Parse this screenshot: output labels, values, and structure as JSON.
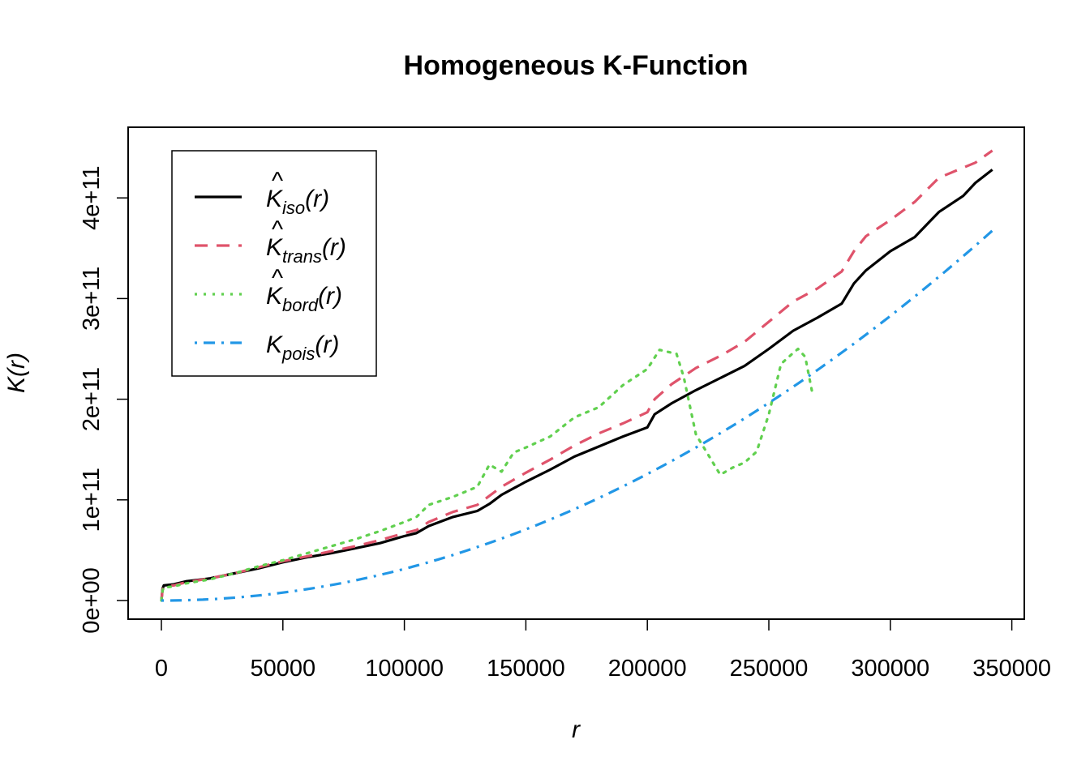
{
  "chart_data": {
    "type": "line",
    "title": "Homogeneous K-Function",
    "xlabel": "r",
    "ylabel": "K(r)",
    "xlim": [
      0,
      350000
    ],
    "ylim": [
      0,
      450000000000.0
    ],
    "x_ticks": [
      0,
      50000,
      100000,
      150000,
      200000,
      250000,
      300000,
      350000
    ],
    "x_tick_labels": [
      "0",
      "50000",
      "100000",
      "150000",
      "200000",
      "250000",
      "300000",
      "350000"
    ],
    "y_ticks": [
      0,
      100000000000.0,
      200000000000.0,
      300000000000.0,
      400000000000.0
    ],
    "y_tick_labels": [
      "0e+00",
      "1e+11",
      "2e+11",
      "3e+11",
      "4e+11"
    ],
    "grid": false,
    "legend_position": "top-left",
    "series": [
      {
        "name": "iso",
        "legend_base": "K",
        "legend_sub": "iso",
        "legend_arg": "(r)",
        "hat": true,
        "color": "#000000",
        "dash": "solid",
        "x": [
          0,
          500,
          1000,
          5000,
          10000,
          20000,
          30000,
          40000,
          50000,
          60000,
          70000,
          80000,
          90000,
          100000,
          105000,
          110000,
          120000,
          130000,
          135000,
          140000,
          150000,
          160000,
          170000,
          180000,
          190000,
          200000,
          203000,
          210000,
          220000,
          230000,
          240000,
          250000,
          260000,
          270000,
          280000,
          285000,
          290000,
          300000,
          310000,
          320000,
          330000,
          335000,
          342000
        ],
        "y": [
          0,
          12000000000.0,
          15000000000.0,
          16000000000.0,
          19000000000.0,
          22000000000.0,
          27000000000.0,
          32000000000.0,
          38000000000.0,
          43000000000.0,
          47000000000.0,
          52000000000.0,
          57000000000.0,
          64000000000.0,
          67000000000.0,
          74000000000.0,
          83000000000.0,
          89000000000.0,
          96000000000.0,
          105000000000.0,
          118000000000.0,
          130000000000.0,
          143000000000.0,
          153000000000.0,
          163000000000.0,
          172000000000.0,
          185000000000.0,
          196000000000.0,
          209000000000.0,
          221000000000.0,
          233000000000.0,
          250000000000.0,
          268000000000.0,
          281000000000.0,
          295000000000.0,
          315000000000.0,
          328000000000.0,
          347000000000.0,
          361000000000.0,
          386000000000.0,
          402000000000.0,
          415000000000.0,
          428000000000.0
        ]
      },
      {
        "name": "trans",
        "legend_base": "K",
        "legend_sub": "trans",
        "legend_arg": "(r)",
        "hat": true,
        "color": "#DF536B",
        "dash": "dashed",
        "x": [
          0,
          500,
          1000,
          5000,
          10000,
          20000,
          30000,
          40000,
          50000,
          60000,
          70000,
          80000,
          90000,
          100000,
          105000,
          110000,
          120000,
          130000,
          135000,
          140000,
          150000,
          160000,
          170000,
          180000,
          190000,
          200000,
          203000,
          210000,
          220000,
          230000,
          240000,
          250000,
          260000,
          270000,
          280000,
          285000,
          290000,
          300000,
          310000,
          320000,
          330000,
          335000,
          342000
        ],
        "y": [
          0,
          11000000000.0,
          14000000000.0,
          15000000000.0,
          18000000000.0,
          22000000000.0,
          27000000000.0,
          33000000000.0,
          39000000000.0,
          44000000000.0,
          49000000000.0,
          54000000000.0,
          60000000000.0,
          67000000000.0,
          70000000000.0,
          78000000000.0,
          88000000000.0,
          95000000000.0,
          104000000000.0,
          113000000000.0,
          127000000000.0,
          140000000000.0,
          154000000000.0,
          166000000000.0,
          176000000000.0,
          187000000000.0,
          200000000000.0,
          215000000000.0,
          231000000000.0,
          243000000000.0,
          257000000000.0,
          277000000000.0,
          297000000000.0,
          310000000000.0,
          327000000000.0,
          347000000000.0,
          362000000000.0,
          378000000000.0,
          396000000000.0,
          420000000000.0,
          430000000000.0,
          435000000000.0,
          447000000000.0
        ]
      },
      {
        "name": "bord",
        "legend_base": "K",
        "legend_sub": "bord",
        "legend_arg": "(r)",
        "hat": true,
        "color": "#61D04F",
        "dash": "dotted",
        "x": [
          0,
          500,
          1000,
          5000,
          10000,
          20000,
          30000,
          40000,
          50000,
          60000,
          70000,
          80000,
          90000,
          100000,
          105000,
          110000,
          120000,
          130000,
          135000,
          140000,
          145000,
          150000,
          160000,
          170000,
          180000,
          190000,
          200000,
          205000,
          212000,
          215000,
          220000,
          225000,
          230000,
          235000,
          240000,
          245000,
          250000,
          255000,
          260000,
          262000,
          265000,
          268000
        ],
        "y": [
          0,
          10000000000.0,
          13000000000.0,
          14000000000.0,
          17000000000.0,
          21000000000.0,
          27000000000.0,
          34000000000.0,
          40000000000.0,
          47000000000.0,
          54000000000.0,
          61000000000.0,
          69000000000.0,
          78000000000.0,
          83000000000.0,
          95000000000.0,
          103000000000.0,
          113000000000.0,
          135000000000.0,
          128000000000.0,
          147000000000.0,
          152000000000.0,
          163000000000.0,
          182000000000.0,
          192000000000.0,
          214000000000.0,
          230000000000.0,
          249000000000.0,
          245000000000.0,
          222000000000.0,
          165000000000.0,
          145000000000.0,
          125000000000.0,
          132000000000.0,
          137000000000.0,
          148000000000.0,
          185000000000.0,
          235000000000.0,
          246000000000.0,
          250000000000.0,
          242000000000.0,
          205000000000.0
        ]
      },
      {
        "name": "pois",
        "legend_base": "K",
        "legend_sub": "pois",
        "legend_arg": "(r)",
        "hat": false,
        "color": "#2297E6",
        "dash": "dotdash",
        "formula": "pi*r^2",
        "x_max": 342000
      }
    ]
  }
}
